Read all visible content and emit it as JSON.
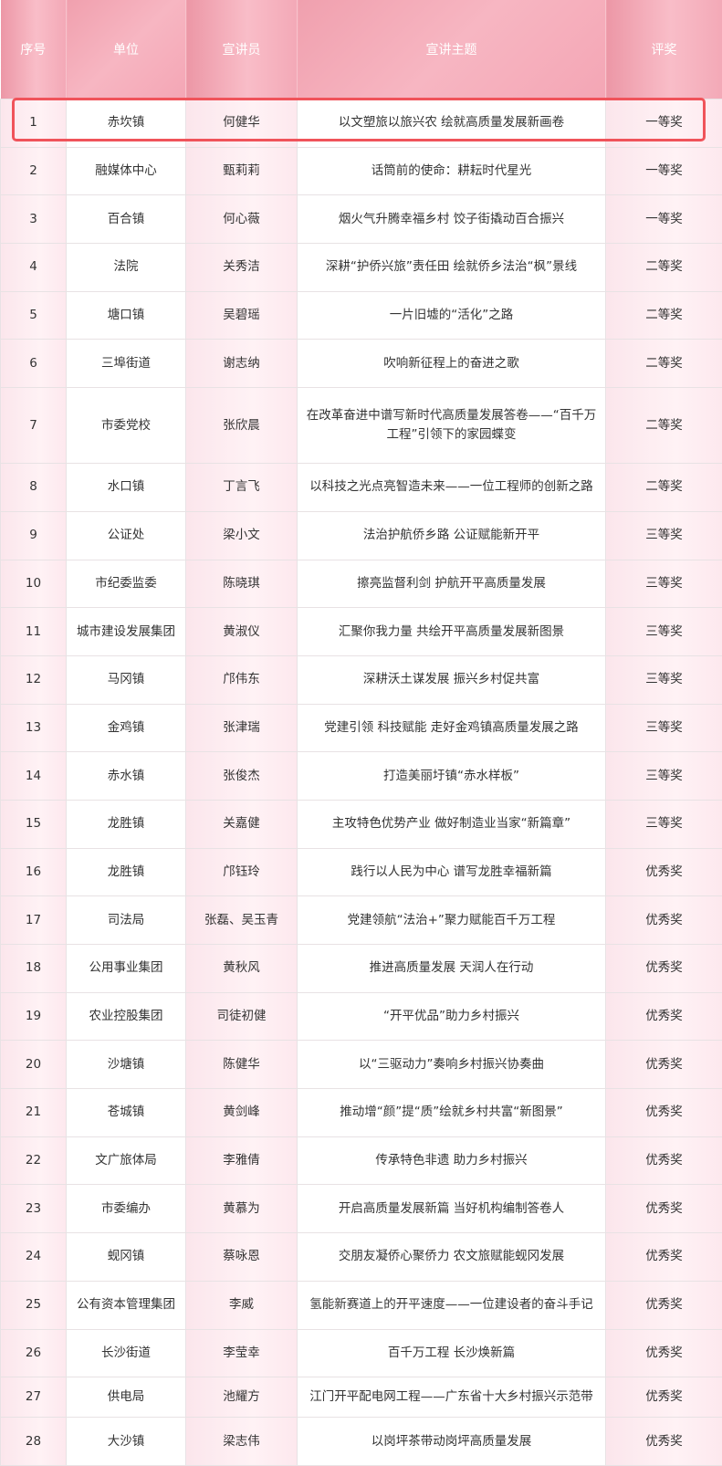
{
  "header": {
    "index": "序号",
    "unit": "单位",
    "speaker": "宣讲员",
    "topic": "宣讲主题",
    "award": "评奖"
  },
  "highlight_color": "#f0535a",
  "rows": [
    [
      "1",
      "赤坎镇",
      "何健华",
      "以文塑旅以旅兴农 绘就高质量发展新画卷",
      "一等奖"
    ],
    [
      "2",
      "融媒体中心",
      "甄莉莉",
      "话筒前的使命：耕耘时代星光",
      "一等奖"
    ],
    [
      "3",
      "百合镇",
      "何心薇",
      "烟火气升腾幸福乡村 饺子街撬动百合振兴",
      "一等奖"
    ],
    [
      "4",
      "法院",
      "关秀洁",
      "深耕“护侨兴旅”责任田 绘就侨乡法治“枫”景线",
      "二等奖"
    ],
    [
      "5",
      "塘口镇",
      "吴碧瑶",
      "一片旧墟的“活化”之路",
      "二等奖"
    ],
    [
      "6",
      "三埠街道",
      "谢志纳",
      "吹响新征程上的奋进之歌",
      "二等奖"
    ],
    [
      "7",
      "市委党校",
      "张欣晨",
      "在改革奋进中谱写新时代高质量发展答卷——“百千万工程”引领下的家园蝶变",
      "二等奖"
    ],
    [
      "8",
      "水口镇",
      "丁言飞",
      "以科技之光点亮智造未来——一位工程师的创新之路",
      "二等奖"
    ],
    [
      "9",
      "公证处",
      "梁小文",
      "法治护航侨乡路 公证赋能新开平",
      "三等奖"
    ],
    [
      "10",
      "市纪委监委",
      "陈晓琪",
      "擦亮监督利剑 护航开平高质量发展",
      "三等奖"
    ],
    [
      "11",
      "城市建设发展集团",
      "黄淑仪",
      "汇聚你我力量 共绘开平高质量发展新图景",
      "三等奖"
    ],
    [
      "12",
      "马冈镇",
      "邝伟东",
      "深耕沃土谋发展 振兴乡村促共富",
      "三等奖"
    ],
    [
      "13",
      "金鸡镇",
      "张津瑞",
      "党建引领 科技赋能 走好金鸡镇高质量发展之路",
      "三等奖"
    ],
    [
      "14",
      "赤水镇",
      "张俊杰",
      "打造美丽圩镇“赤水样板”",
      "三等奖"
    ],
    [
      "15",
      "龙胜镇",
      "关嘉健",
      "主攻特色优势产业 做好制造业当家“新篇章”",
      "三等奖"
    ],
    [
      "16",
      "龙胜镇",
      "邝钰玲",
      "践行以人民为中心 谱写龙胜幸福新篇",
      "优秀奖"
    ],
    [
      "17",
      "司法局",
      "张磊、吴玉青",
      "党建领航“法治+”聚力赋能百千万工程",
      "优秀奖"
    ],
    [
      "18",
      "公用事业集团",
      "黄秋风",
      "推进高质量发展 天润人在行动",
      "优秀奖"
    ],
    [
      "19",
      "农业控股集团",
      "司徒初健",
      "“开平优品”助力乡村振兴",
      "优秀奖"
    ],
    [
      "20",
      "沙塘镇",
      "陈健华",
      "以“三驱动力”奏响乡村振兴协奏曲",
      "优秀奖"
    ],
    [
      "21",
      "苍城镇",
      "黄剑峰",
      "推动增“颜”提“质”绘就乡村共富“新图景”",
      "优秀奖"
    ],
    [
      "22",
      "文广旅体局",
      "李雅倩",
      "传承特色非遗 助力乡村振兴",
      "优秀奖"
    ],
    [
      "23",
      "市委编办",
      "黄慕为",
      "开启高质量发展新篇 当好机构编制答卷人",
      "优秀奖"
    ],
    [
      "24",
      "蚬冈镇",
      "蔡咏恩",
      "交朋友凝侨心聚侨力 农文旅赋能蚬冈发展",
      "优秀奖"
    ],
    [
      "25",
      "公有资本管理集团",
      "李威",
      "氢能新赛道上的开平速度——一位建设者的奋斗手记",
      "优秀奖"
    ],
    [
      "26",
      "长沙街道",
      "李莹幸",
      "百千万工程 长沙焕新篇",
      "优秀奖"
    ],
    [
      "27",
      "供电局",
      "池耀方",
      "江门开平配电网工程——广东省十大乡村振兴示范带",
      "优秀奖"
    ],
    [
      "28",
      "大沙镇",
      "梁志伟",
      "以岗坪茶带动岗坪高质量发展",
      "优秀奖"
    ]
  ]
}
